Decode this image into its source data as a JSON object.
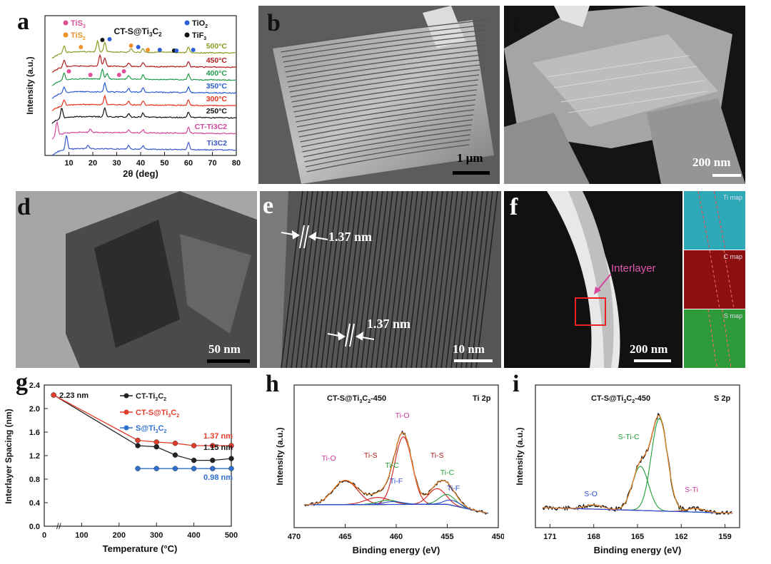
{
  "panels": {
    "a": "a",
    "b": "b",
    "c": "c",
    "d": "d",
    "e": "e",
    "f": "f",
    "g": "g",
    "h": "h",
    "i": "i"
  },
  "micrographs": {
    "b": {
      "scale": "1 μm"
    },
    "c": {
      "scale": "200 nm"
    },
    "d": {
      "scale": "50 nm"
    },
    "e": {
      "scale": "10 nm",
      "spacing_1": "1.37 nm",
      "spacing_2": "1.37 nm"
    },
    "f": {
      "scale": "200 nm",
      "annotation": "Interlayer",
      "maps": [
        "Ti map",
        "C map",
        "S map"
      ]
    }
  },
  "colors": {
    "TiS3": "#e0509a",
    "TiS2": "#f0922a",
    "TiO2": "#2d5fd8",
    "TiF3": "#111111",
    "CT_Ti3C2": "#222222",
    "CT_S_Ti3C2": "#e23c2a",
    "S_Ti3C2": "#2f6fd0",
    "fit_red": "#cc1f1f",
    "fit_green": "#1f9e3a",
    "fit_blue": "#2d4fcf",
    "fit_orange": "#f08a2a"
  },
  "chart_data": [
    {
      "id": "a",
      "type": "line",
      "title": "CT-S@Ti3C2",
      "xlabel": "2θ (deg)",
      "ylabel": "Intensity (a.u.)",
      "xlim": [
        0,
        80
      ],
      "xticks": [
        "10",
        "20",
        "30",
        "40",
        "50",
        "60",
        "70",
        "80"
      ],
      "legend": [
        "TiS3",
        "TiS2",
        "TiO2",
        "TiF3"
      ],
      "series": [
        {
          "name": "500°C",
          "color": "#8a9a22"
        },
        {
          "name": "450°C",
          "color": "#b01e1e"
        },
        {
          "name": "400°C",
          "color": "#1e9a4a"
        },
        {
          "name": "350°C",
          "color": "#2a5ccf"
        },
        {
          "name": "300°C",
          "color": "#e8331e"
        },
        {
          "name": "250°C",
          "color": "#111111"
        },
        {
          "name": "CT-Ti3C2",
          "color": "#d0479c"
        },
        {
          "name": "Ti3C2",
          "color": "#3a58c8"
        }
      ]
    },
    {
      "id": "g",
      "type": "line",
      "xlabel": "Temperature (°C)",
      "ylabel": "Interlayer Spacing (nm)",
      "xlim": [
        0,
        500
      ],
      "ylim": [
        0.0,
        2.4
      ],
      "xticks": [
        0,
        100,
        200,
        300,
        400,
        500
      ],
      "yticks": [
        0.0,
        0.4,
        0.8,
        1.2,
        1.6,
        2.0,
        2.4
      ],
      "annotations": [
        "2.23 nm",
        "1.37 nm",
        "1.15 nm",
        "0.98 nm"
      ],
      "series": [
        {
          "name": "CT-Ti3C2",
          "x": [
            25,
            250,
            300,
            350,
            400,
            450,
            500
          ],
          "y": [
            2.23,
            1.37,
            1.35,
            1.21,
            1.12,
            1.12,
            1.15
          ]
        },
        {
          "name": "CT-S@Ti3C2",
          "x": [
            25,
            250,
            300,
            350,
            400,
            450,
            500
          ],
          "y": [
            2.23,
            1.46,
            1.43,
            1.41,
            1.37,
            1.37,
            1.37
          ]
        },
        {
          "name": "S@Ti3C2",
          "x": [
            250,
            300,
            350,
            400,
            450,
            500
          ],
          "y": [
            0.98,
            0.98,
            0.98,
            0.98,
            0.98,
            0.98
          ]
        }
      ]
    },
    {
      "id": "h",
      "type": "line",
      "title": "CT-S@Ti3C2-450",
      "label": "Ti 2p",
      "xlabel": "Binding energy (eV)",
      "ylabel": "Intensity (a.u.)",
      "xlim": [
        470,
        450
      ],
      "xticks": [
        470,
        465,
        460,
        455,
        450
      ],
      "peaks": [
        "Ti-O",
        "Ti-S",
        "Ti-C",
        "Ti-F",
        "Ti-O",
        "Ti-S",
        "Ti-C",
        "Ti-F"
      ]
    },
    {
      "id": "i",
      "type": "line",
      "title": "CT-S@Ti3C2-450",
      "label": "S 2p",
      "xlabel": "Binding energy (eV)",
      "ylabel": "Intensity (a.u.)",
      "xlim": [
        172,
        158
      ],
      "xticks": [
        171,
        168,
        165,
        162,
        159
      ],
      "peaks": [
        "S-O",
        "S-Ti-C",
        "S-Ti"
      ]
    }
  ]
}
